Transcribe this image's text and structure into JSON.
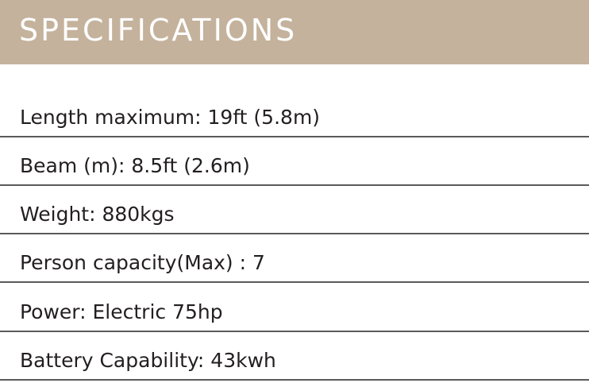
{
  "header": {
    "title": "SPECIFICATIONS",
    "background_color": "#c4b29c"
  },
  "specs": [
    {
      "label": "Length maximum: 19ft (5.8m)"
    },
    {
      "label": "Beam (m): 8.5ft (2.6m)"
    },
    {
      "label": "Weight: 880kgs"
    },
    {
      "label": "Person capacity(Max) : 7"
    },
    {
      "label": "Power: Electric 75hp"
    },
    {
      "label": "Battery Capability: 43kwh"
    }
  ]
}
